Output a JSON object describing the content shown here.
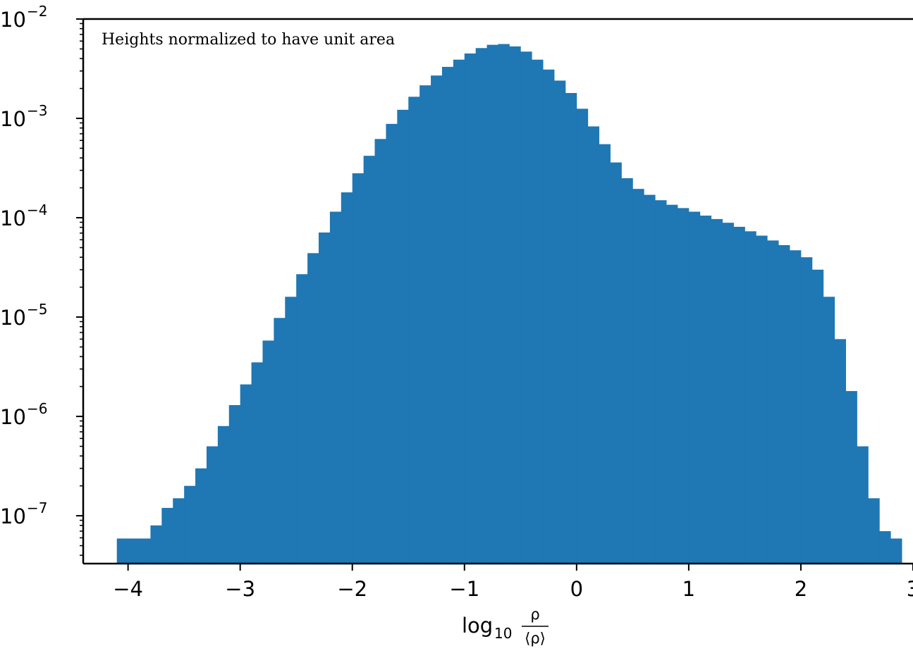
{
  "chart_data": {
    "type": "bar",
    "title": "",
    "annotation": "Heights normalized to have unit area",
    "xlabel": {
      "base": "log",
      "subscript": "10",
      "numerator": "ρ",
      "denominator": "⟨ρ⟩"
    },
    "ylabel": "",
    "xlim": [
      -4.4,
      3.0
    ],
    "ylim": [
      3.3e-08,
      0.01
    ],
    "y_scale": "log",
    "grid": false,
    "legend": "none",
    "x_ticks": [
      -4,
      -3,
      -2,
      -1,
      0,
      1,
      2,
      3
    ],
    "x_tick_labels": [
      "−4",
      "−3",
      "−2",
      "−1",
      "0",
      "1",
      "2",
      "3"
    ],
    "y_ticks": [
      {
        "base": "10",
        "exp": "−7",
        "value": 1e-07
      },
      {
        "base": "10",
        "exp": "−6",
        "value": 1e-06
      },
      {
        "base": "10",
        "exp": "−5",
        "value": 1e-05
      },
      {
        "base": "10",
        "exp": "−4",
        "value": 0.0001
      },
      {
        "base": "10",
        "exp": "−3",
        "value": 0.001
      },
      {
        "base": "10",
        "exp": "−2",
        "value": 0.01
      }
    ],
    "series": [
      {
        "color": "#1f77b4",
        "x": [
          -4.05,
          -3.95,
          -3.85,
          -3.75,
          -3.65,
          -3.55,
          -3.45,
          -3.35,
          -3.25,
          -3.15,
          -3.05,
          -2.95,
          -2.85,
          -2.75,
          -2.65,
          -2.55,
          -2.45,
          -2.35,
          -2.25,
          -2.15,
          -2.05,
          -1.95,
          -1.85,
          -1.75,
          -1.65,
          -1.55,
          -1.45,
          -1.35,
          -1.25,
          -1.15,
          -1.05,
          -0.95,
          -0.85,
          -0.75,
          -0.65,
          -0.55,
          -0.45,
          -0.35,
          -0.25,
          -0.15,
          -0.05,
          0.05,
          0.15,
          0.25,
          0.35,
          0.45,
          0.55,
          0.65,
          0.75,
          0.85,
          0.95,
          1.05,
          1.15,
          1.25,
          1.35,
          1.45,
          1.55,
          1.65,
          1.75,
          1.85,
          1.95,
          2.05,
          2.15,
          2.25,
          2.35,
          2.45,
          2.55,
          2.65,
          2.75,
          2.85
        ],
        "values": [
          5.9e-08,
          5.9e-08,
          5.9e-08,
          8e-08,
          1.2e-07,
          1.5e-07,
          2e-07,
          3e-07,
          5e-07,
          8e-07,
          1.3e-06,
          2.1e-06,
          3.5e-06,
          5.8e-06,
          9.8e-06,
          1.6e-05,
          2.7e-05,
          4.4e-05,
          7.1e-05,
          0.000115,
          0.00018,
          0.00028,
          0.00042,
          0.00062,
          0.00088,
          0.00122,
          0.00165,
          0.00215,
          0.0027,
          0.0033,
          0.0039,
          0.0045,
          0.0051,
          0.0055,
          0.0056,
          0.0053,
          0.0047,
          0.0039,
          0.0031,
          0.0024,
          0.0018,
          0.00125,
          0.00083,
          0.00055,
          0.00036,
          0.00025,
          0.000195,
          0.00017,
          0.00015,
          0.000135,
          0.000125,
          0.000115,
          0.000105,
          9.7e-05,
          8.9e-05,
          8.1e-05,
          7.3e-05,
          6.6e-05,
          5.9e-05,
          5.3e-05,
          4.7e-05,
          4e-05,
          3e-05,
          1.6e-05,
          6e-06,
          1.8e-06,
          5e-07,
          1.5e-07,
          7e-08,
          5.9e-08
        ]
      }
    ]
  }
}
